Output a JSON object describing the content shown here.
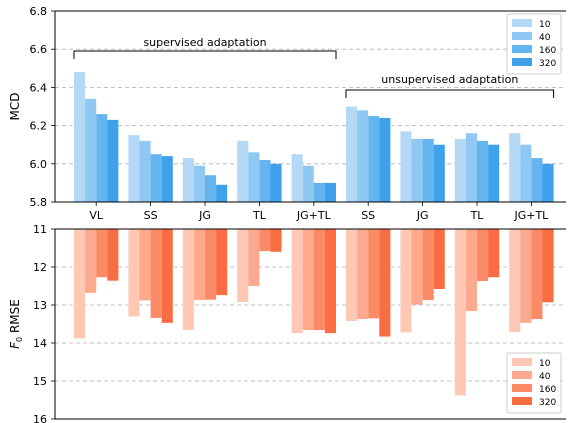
{
  "chart_data": [
    {
      "type": "bar",
      "ylabel": "MCD",
      "ylim": [
        5.8,
        6.8
      ],
      "yticks": [
        "5.8",
        "6.0",
        "6.2",
        "6.4",
        "6.6",
        "6.8"
      ],
      "grid": "horizontal-dashed",
      "legend": "top-right",
      "categories": [
        "VL",
        "SS",
        "JG",
        "TL",
        "JG+TL",
        "SS",
        "JG",
        "TL",
        "JG+TL"
      ],
      "series": [
        {
          "name": "10",
          "color": "#b3d9f7",
          "values": [
            6.48,
            6.15,
            6.03,
            6.12,
            6.05,
            6.3,
            6.17,
            6.13,
            6.16
          ]
        },
        {
          "name": "40",
          "color": "#8ec8f3",
          "values": [
            6.34,
            6.12,
            5.99,
            6.06,
            5.99,
            6.28,
            6.13,
            6.16,
            6.1
          ]
        },
        {
          "name": "160",
          "color": "#64b4f0",
          "values": [
            6.26,
            6.05,
            5.94,
            6.02,
            5.9,
            6.25,
            6.13,
            6.12,
            6.03
          ]
        },
        {
          "name": "320",
          "color": "#3fa0ec",
          "values": [
            6.23,
            6.04,
            5.89,
            6.0,
            5.9,
            6.24,
            6.1,
            6.1,
            6.0
          ]
        }
      ],
      "annotations": [
        {
          "text": "supervised adaptation",
          "from_category": 0,
          "to_category": 4
        },
        {
          "text": "unsupervised adaptation",
          "from_category": 5,
          "to_category": 8
        }
      ]
    },
    {
      "type": "bar",
      "ylabel": "F0 RMSE",
      "ylim": [
        11,
        16
      ],
      "inverted": true,
      "yticks": [
        "11",
        "12",
        "13",
        "14",
        "15",
        "16"
      ],
      "grid": "horizontal-dashed",
      "legend": "bottom-right",
      "categories": [
        "VL",
        "SS",
        "JG",
        "TL",
        "JG+TL",
        "SS",
        "JG",
        "TL",
        "JG+TL"
      ],
      "series": [
        {
          "name": "10",
          "color": "#fec8b4",
          "values": [
            13.88,
            13.3,
            13.66,
            12.92,
            13.74,
            13.42,
            13.72,
            15.38,
            13.71
          ]
        },
        {
          "name": "40",
          "color": "#fca98e",
          "values": [
            12.68,
            12.88,
            12.87,
            12.5,
            13.66,
            13.37,
            12.99,
            13.16,
            13.47
          ]
        },
        {
          "name": "160",
          "color": "#fb8a67",
          "values": [
            12.27,
            13.34,
            12.86,
            11.58,
            13.66,
            13.35,
            12.87,
            12.37,
            13.37
          ]
        },
        {
          "name": "320",
          "color": "#fa6d43",
          "values": [
            12.36,
            13.47,
            12.74,
            11.6,
            13.74,
            13.83,
            12.58,
            12.27,
            12.93
          ]
        }
      ]
    }
  ]
}
